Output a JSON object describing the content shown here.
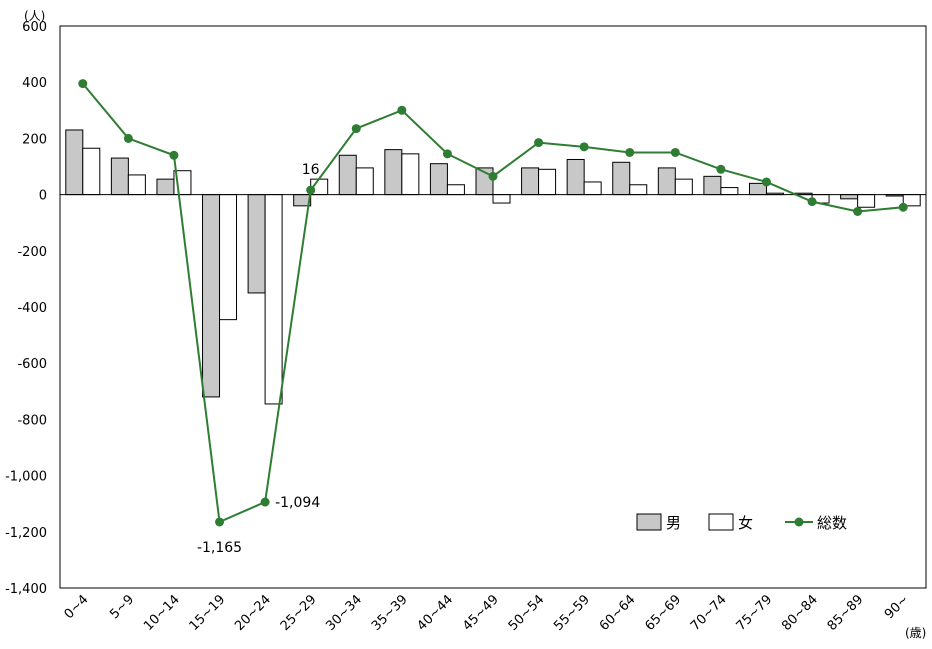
{
  "chart_data": {
    "type": "bar",
    "y_unit": "(人)",
    "x_unit": "(歳)",
    "ylim": [
      -1400,
      600
    ],
    "yticks": [
      600,
      400,
      200,
      0,
      -200,
      -400,
      -600,
      -800,
      -1000,
      -1200,
      -1400
    ],
    "ytick_labels": [
      "600",
      "400",
      "200",
      "0",
      "-200",
      "-400",
      "-600",
      "-800",
      "-1,000",
      "-1,200",
      "-1,400"
    ],
    "categories": [
      "0~4",
      "5~9",
      "10~14",
      "15~19",
      "20~24",
      "25~29",
      "30~34",
      "35~39",
      "40~44",
      "45~49",
      "50~54",
      "55~59",
      "60~64",
      "65~69",
      "70~74",
      "75~79",
      "80~84",
      "85~89",
      "90~"
    ],
    "series": [
      {
        "name": "男",
        "kind": "bar",
        "color": "#c8c8c8",
        "values": [
          230,
          130,
          55,
          -720,
          -350,
          -40,
          140,
          160,
          110,
          95,
          95,
          125,
          115,
          95,
          65,
          40,
          5,
          -15,
          -5
        ]
      },
      {
        "name": "女",
        "kind": "bar",
        "color": "#ffffff",
        "values": [
          165,
          70,
          85,
          -445,
          -745,
          55,
          95,
          145,
          35,
          -30,
          90,
          45,
          35,
          55,
          25,
          5,
          -30,
          -45,
          -40
        ]
      },
      {
        "name": "総数",
        "kind": "line",
        "color": "#2e7d32",
        "values": [
          395,
          200,
          140,
          -1165,
          -1094,
          16,
          235,
          300,
          145,
          65,
          185,
          170,
          150,
          150,
          90,
          45,
          -25,
          -60,
          -45
        ]
      }
    ],
    "annotations": [
      {
        "category": "15~19",
        "text": "-1,165"
      },
      {
        "category": "20~24",
        "text": "-1,094"
      },
      {
        "category": "25~29",
        "text": "16"
      }
    ],
    "legend_position": "bottom-right",
    "grid": false
  }
}
